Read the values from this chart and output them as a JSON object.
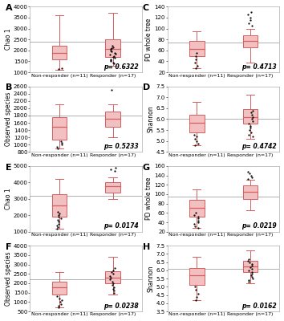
{
  "panels": [
    {
      "label": "A",
      "ylabel": "Chao 1",
      "pvalue": "p= 0.6322",
      "ylim": [
        1000,
        4000
      ],
      "yticks": [
        1000,
        1500,
        2000,
        2500,
        3000,
        3500,
        4000
      ],
      "hline": 2400,
      "nr_q1": 1600,
      "nr_med": 1900,
      "nr_q3": 2200,
      "nr_whislo": 1100,
      "nr_whishi": 3600,
      "nr_fliers": [
        1150,
        1200
      ],
      "r_q1": 1700,
      "r_med": 2050,
      "r_q3": 2500,
      "r_whislo": 1300,
      "r_whishi": 3700,
      "r_fliers": [
        1400,
        1450,
        1500,
        1550,
        1600,
        1650,
        1700,
        1750,
        1800,
        1850,
        1900,
        1950,
        2000,
        2050,
        2100,
        2150,
        2200
      ]
    },
    {
      "label": "B",
      "ylabel": "Observed species",
      "pvalue": "p= 0.5233",
      "ylim": [
        800,
        2600
      ],
      "yticks": [
        800,
        1000,
        1200,
        1400,
        1600,
        1800,
        2000,
        2200,
        2400,
        2600
      ],
      "hline": 1800,
      "nr_q1": 1150,
      "nr_med": 1500,
      "nr_q3": 1750,
      "nr_whislo": 900,
      "nr_whishi": 2100,
      "nr_fliers": [
        900,
        950,
        1000,
        1050,
        1100
      ],
      "r_q1": 1500,
      "r_med": 1700,
      "r_q3": 1900,
      "r_whislo": 1200,
      "r_whishi": 2100,
      "r_fliers": [
        2500
      ]
    },
    {
      "label": "C",
      "ylabel": "PD whole tree",
      "pvalue": "p= 0.4713",
      "ylim": [
        20,
        140
      ],
      "yticks": [
        20,
        40,
        60,
        80,
        100,
        120,
        140
      ],
      "hline": 75,
      "nr_q1": 50,
      "nr_med": 62,
      "nr_q3": 78,
      "nr_whislo": 28,
      "nr_whishi": 95,
      "nr_fliers": [
        28,
        32,
        38,
        44,
        50,
        55
      ],
      "r_q1": 65,
      "r_med": 78,
      "r_q3": 88,
      "r_whislo": 38,
      "r_whishi": 100,
      "r_fliers": [
        105,
        110,
        115,
        120,
        125,
        130
      ]
    },
    {
      "label": "D",
      "ylabel": "Shannon",
      "pvalue": "p= 0.4742",
      "ylim": [
        4.5,
        7.5
      ],
      "yticks": [
        4.5,
        5.0,
        5.5,
        6.0,
        6.5,
        7.0,
        7.5
      ],
      "hline": 6.0,
      "nr_q1": 5.4,
      "nr_med": 5.85,
      "nr_q3": 6.2,
      "nr_whislo": 4.8,
      "nr_whishi": 6.8,
      "nr_fliers": [
        4.8,
        4.9,
        5.0,
        5.1,
        5.2,
        5.3
      ],
      "r_q1": 5.8,
      "r_med": 6.1,
      "r_q3": 6.45,
      "r_whislo": 5.1,
      "r_whishi": 7.1,
      "r_fliers": [
        5.2,
        5.3,
        5.4,
        5.5,
        5.6,
        5.7,
        5.8,
        5.9,
        6.0,
        6.1,
        6.2,
        6.3,
        6.4
      ]
    },
    {
      "label": "E",
      "ylabel": "Chao 1",
      "pvalue": "p= 0.0174",
      "ylim": [
        1000,
        5000
      ],
      "yticks": [
        1000,
        2000,
        3000,
        4000,
        5000
      ],
      "hline": 3200,
      "nr_q1": 1900,
      "nr_med": 2600,
      "nr_q3": 3300,
      "nr_whislo": 1200,
      "nr_whishi": 4200,
      "nr_fliers": [
        1200,
        1300,
        1400,
        1500,
        1600,
        1700,
        1800,
        1900,
        2000,
        2100,
        2200
      ],
      "r_q1": 3400,
      "r_med": 3750,
      "r_q3": 4000,
      "r_whislo": 3000,
      "r_whishi": 4300,
      "r_fliers": [
        4700,
        4800,
        4900
      ]
    },
    {
      "label": "F",
      "ylabel": "Observed species",
      "pvalue": "p= 0.0238",
      "ylim": [
        500,
        4000
      ],
      "yticks": [
        500,
        1000,
        1500,
        2000,
        2500,
        3000,
        3500,
        4000
      ],
      "hline": 2200,
      "nr_q1": 1400,
      "nr_med": 1800,
      "nr_q3": 2100,
      "nr_whislo": 700,
      "nr_whishi": 2600,
      "nr_fliers": [
        700,
        800,
        900,
        1000,
        1100,
        1200,
        1300
      ],
      "r_q1": 2000,
      "r_med": 2300,
      "r_q3": 2650,
      "r_whislo": 1400,
      "r_whishi": 3400,
      "r_fliers": [
        1500,
        1600,
        1700,
        1800,
        1900,
        2000,
        2100,
        2200,
        2300,
        2400,
        2500,
        2600,
        2700,
        2800
      ]
    },
    {
      "label": "G",
      "ylabel": "PD whole tree",
      "pvalue": "p= 0.0219",
      "ylim": [
        20,
        160
      ],
      "yticks": [
        20,
        40,
        60,
        80,
        100,
        120,
        140,
        160
      ],
      "hline": 95,
      "nr_q1": 52,
      "nr_med": 70,
      "nr_q3": 88,
      "nr_whislo": 28,
      "nr_whishi": 110,
      "nr_fliers": [
        28,
        32,
        36,
        40,
        44,
        48,
        52,
        55,
        60
      ],
      "r_q1": 90,
      "r_med": 105,
      "r_q3": 118,
      "r_whislo": 65,
      "r_whishi": 130,
      "r_fliers": [
        132,
        136,
        140,
        144,
        148
      ]
    },
    {
      "label": "H",
      "ylabel": "Shannon",
      "pvalue": "p= 0.0162",
      "ylim": [
        3.5,
        7.5
      ],
      "yticks": [
        3.5,
        4.0,
        4.5,
        5.0,
        5.5,
        6.0,
        6.5,
        7.0,
        7.5
      ],
      "hline": 6.1,
      "nr_q1": 5.1,
      "nr_med": 5.7,
      "nr_q3": 6.15,
      "nr_whislo": 4.2,
      "nr_whishi": 6.8,
      "nr_fliers": [
        4.2,
        4.4,
        4.6,
        4.8,
        5.0
      ],
      "r_q1": 5.9,
      "r_med": 6.25,
      "r_q3": 6.6,
      "r_whislo": 5.2,
      "r_whishi": 7.2,
      "r_fliers": [
        5.3,
        5.4,
        5.5,
        5.6,
        5.7,
        5.8,
        5.9,
        6.0,
        6.1,
        6.2,
        6.3,
        6.4,
        6.5,
        6.6,
        6.7
      ]
    }
  ],
  "box_color": "#d46060",
  "box_facecolor": "#f2c0c0",
  "hline_color": "#b0b0b0",
  "nr_label": "Non-responder (n=11)",
  "r_label": "Responder (n=17)",
  "pvalue_fontsize": 5.5,
  "tick_fontsize": 5.0,
  "ylabel_fontsize": 5.5,
  "panel_label_fontsize": 8
}
